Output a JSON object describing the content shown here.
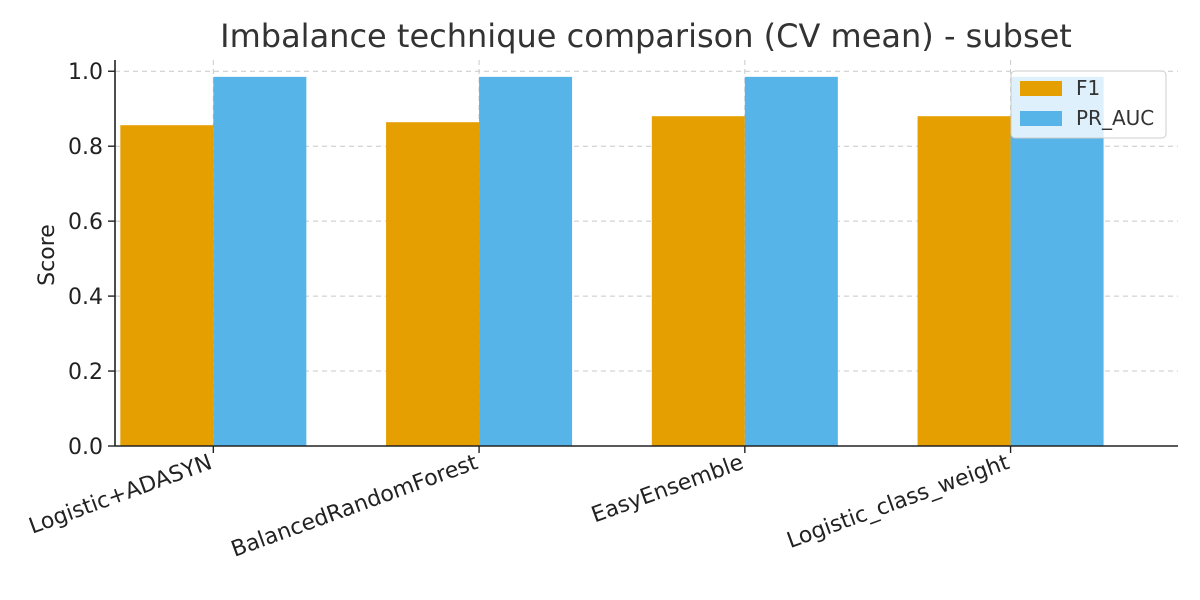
{
  "colors": {
    "f1": "#E69F00",
    "pr_auc": "#56B4E9"
  },
  "chart_data": {
    "type": "bar",
    "title": "Imbalance technique comparison (CV mean) - subset",
    "xlabel": "",
    "ylabel": "Score",
    "categories": [
      "Logistic+ADASYN",
      "BalancedRandomForest",
      "EasyEnsemble",
      "Logistic_class_weight"
    ],
    "series": [
      {
        "name": "F1",
        "values": [
          0.856,
          0.864,
          0.88,
          0.88
        ]
      },
      {
        "name": "PR_AUC",
        "values": [
          0.985,
          0.985,
          0.985,
          0.985
        ]
      }
    ],
    "ylim": [
      0,
      1.03
    ],
    "yticks": [
      "0.0",
      "0.2",
      "0.4",
      "0.6",
      "0.8",
      "1.0"
    ],
    "grid": true,
    "legend_position": "top-right"
  }
}
